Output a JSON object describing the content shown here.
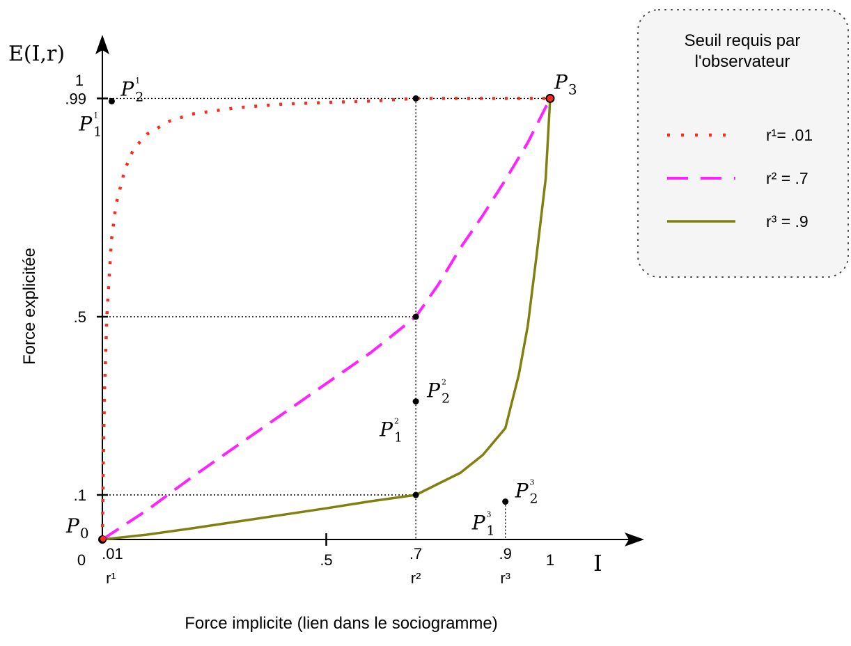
{
  "chart_data": {
    "type": "line",
    "y_axis_symbol": "E(I,r)",
    "x_axis_symbol": "I",
    "xlabel": "Force implicite  (lien dans le sociogramme)",
    "ylabel": "Force explicitée",
    "xlim": [
      0,
      1
    ],
    "ylim": [
      0,
      1
    ],
    "x_ticks": [
      {
        "value": 0,
        "label": "0"
      },
      {
        "value": 0.01,
        "label": ".01",
        "sub": "r¹"
      },
      {
        "value": 0.5,
        "label": ".5"
      },
      {
        "value": 0.7,
        "label": ".7",
        "sub": "r²"
      },
      {
        "value": 0.9,
        "label": ".9",
        "sub": "r³"
      },
      {
        "value": 1,
        "label": "1"
      }
    ],
    "y_ticks": [
      {
        "value": 0.1,
        "label": ".1"
      },
      {
        "value": 0.5,
        "label": ".5"
      },
      {
        "value": 0.99,
        "label": ".99"
      },
      {
        "value": 1,
        "label": "1"
      }
    ],
    "legend": {
      "title_line1": "Seuil requis par",
      "title_line2": "l'observateur",
      "position": "top-right"
    },
    "series": [
      {
        "name": "r¹= .01",
        "style": "dotted",
        "color": "#ff2a1c",
        "x": [
          0,
          0.002,
          0.005,
          0.01,
          0.02,
          0.03,
          0.05,
          0.07,
          0.1,
          0.15,
          0.2,
          0.3,
          0.4,
          0.5,
          0.6,
          0.7,
          0.8,
          0.9,
          1
        ],
        "y": [
          0,
          0.17,
          0.34,
          0.5,
          0.67,
          0.75,
          0.83,
          0.877,
          0.91,
          0.939,
          0.955,
          0.969,
          0.977,
          0.981,
          0.984,
          0.99,
          0.99,
          0.99,
          0.99
        ]
      },
      {
        "name": "r² = .7",
        "style": "dashed",
        "color": "#ff22ff",
        "x": [
          0,
          0.1,
          0.2,
          0.3,
          0.4,
          0.5,
          0.6,
          0.7,
          0.75,
          0.8,
          0.85,
          0.9,
          0.95,
          1
        ],
        "y": [
          0,
          0.066,
          0.14,
          0.21,
          0.28,
          0.35,
          0.42,
          0.5,
          0.572,
          0.655,
          0.728,
          0.807,
          0.891,
          0.99
        ]
      },
      {
        "name": "r³ = .9",
        "style": "solid",
        "color": "#808010",
        "x": [
          0,
          0.1,
          0.2,
          0.3,
          0.4,
          0.5,
          0.6,
          0.7,
          0.8,
          0.85,
          0.9,
          0.93,
          0.95,
          0.97,
          0.99,
          1
        ],
        "y": [
          0,
          0.011,
          0.025,
          0.04,
          0.055,
          0.07,
          0.086,
          0.1,
          0.15,
          0.19,
          0.25,
          0.37,
          0.48,
          0.64,
          0.81,
          0.99
        ]
      }
    ],
    "points": [
      {
        "name": "P",
        "sub": "0",
        "sup": "",
        "x": 0,
        "y": 0
      },
      {
        "name": "P",
        "sub": "1",
        "sup": "1",
        "x": 0.01,
        "y": 0.99
      },
      {
        "name": "P",
        "sub": "2",
        "sup": "1",
        "x": 0.01,
        "y": 0.99
      },
      {
        "name": "P",
        "sub": "1",
        "sup": "2",
        "x": 0.7,
        "y": 0.31
      },
      {
        "name": "P",
        "sub": "2",
        "sup": "2",
        "x": 0.7,
        "y": 0.31
      },
      {
        "name": "P",
        "sub": "1",
        "sup": "3",
        "x": 0.9,
        "y": 0.085
      },
      {
        "name": "P",
        "sub": "2",
        "sup": "3",
        "x": 0.9,
        "y": 0.085
      },
      {
        "name": "P",
        "sub": "3",
        "sup": "",
        "x": 1,
        "y": 0.99
      }
    ],
    "markers": [
      {
        "x": 0.7,
        "y": 0.99
      },
      {
        "x": 0.7,
        "y": 0.5
      },
      {
        "x": 0.7,
        "y": 0.1
      }
    ]
  }
}
